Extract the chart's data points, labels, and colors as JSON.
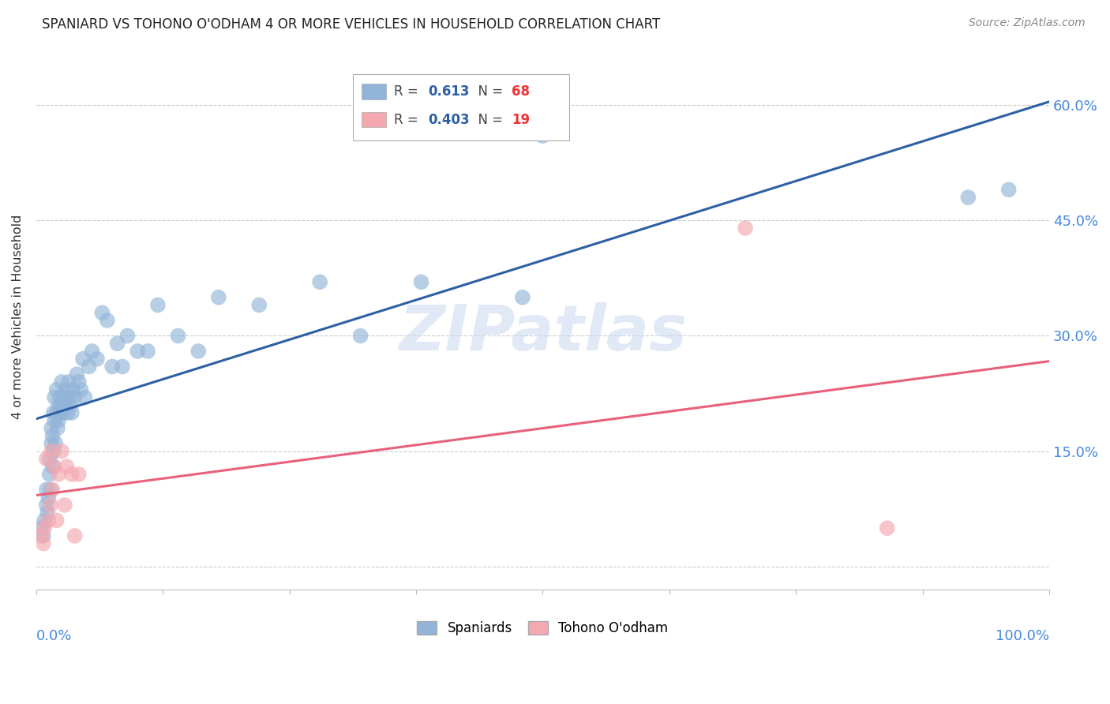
{
  "title": "SPANIARD VS TOHONO O'ODHAM 4 OR MORE VEHICLES IN HOUSEHOLD CORRELATION CHART",
  "source": "Source: ZipAtlas.com",
  "ylabel": "4 or more Vehicles in Household",
  "legend_blue_r": "0.613",
  "legend_blue_n": "68",
  "legend_pink_r": "0.403",
  "legend_pink_n": "19",
  "legend_blue_label": "Spaniards",
  "legend_pink_label": "Tohono O'odham",
  "yticks": [
    0.0,
    0.15,
    0.3,
    0.45,
    0.6
  ],
  "ytick_labels": [
    "",
    "15.0%",
    "30.0%",
    "45.0%",
    "60.0%"
  ],
  "xlim": [
    0.0,
    1.0
  ],
  "ylim": [
    -0.03,
    0.68
  ],
  "blue_color": "#92B4D8",
  "pink_color": "#F4A8B0",
  "blue_line_color": "#2E5FA3",
  "pink_line_color": "#E8607A",
  "watermark": "ZIPatlas",
  "blue_scatter_x": [
    0.005,
    0.007,
    0.008,
    0.01,
    0.01,
    0.011,
    0.012,
    0.013,
    0.013,
    0.014,
    0.015,
    0.015,
    0.016,
    0.016,
    0.017,
    0.017,
    0.018,
    0.018,
    0.019,
    0.02,
    0.02,
    0.021,
    0.022,
    0.022,
    0.023,
    0.024,
    0.025,
    0.025,
    0.026,
    0.027,
    0.028,
    0.029,
    0.03,
    0.031,
    0.032,
    0.033,
    0.034,
    0.035,
    0.036,
    0.038,
    0.04,
    0.042,
    0.044,
    0.046,
    0.048,
    0.052,
    0.055,
    0.06,
    0.065,
    0.07,
    0.075,
    0.08,
    0.085,
    0.09,
    0.1,
    0.11,
    0.12,
    0.14,
    0.16,
    0.18,
    0.22,
    0.28,
    0.32,
    0.38,
    0.48,
    0.5,
    0.92,
    0.96
  ],
  "blue_scatter_y": [
    0.05,
    0.04,
    0.06,
    0.08,
    0.1,
    0.07,
    0.09,
    0.12,
    0.14,
    0.1,
    0.16,
    0.18,
    0.13,
    0.17,
    0.2,
    0.15,
    0.19,
    0.22,
    0.16,
    0.2,
    0.23,
    0.18,
    0.21,
    0.19,
    0.22,
    0.2,
    0.21,
    0.24,
    0.2,
    0.22,
    0.21,
    0.23,
    0.22,
    0.2,
    0.24,
    0.22,
    0.21,
    0.2,
    0.23,
    0.22,
    0.25,
    0.24,
    0.23,
    0.27,
    0.22,
    0.26,
    0.28,
    0.27,
    0.33,
    0.32,
    0.26,
    0.29,
    0.26,
    0.3,
    0.28,
    0.28,
    0.34,
    0.3,
    0.28,
    0.35,
    0.34,
    0.37,
    0.3,
    0.37,
    0.35,
    0.56,
    0.48,
    0.49
  ],
  "pink_scatter_x": [
    0.005,
    0.007,
    0.008,
    0.01,
    0.012,
    0.014,
    0.015,
    0.016,
    0.018,
    0.02,
    0.022,
    0.025,
    0.028,
    0.03,
    0.035,
    0.038,
    0.042,
    0.7,
    0.84
  ],
  "pink_scatter_y": [
    0.04,
    0.03,
    0.05,
    0.14,
    0.06,
    0.08,
    0.15,
    0.1,
    0.13,
    0.06,
    0.12,
    0.15,
    0.08,
    0.13,
    0.12,
    0.04,
    0.12,
    0.44,
    0.05
  ]
}
